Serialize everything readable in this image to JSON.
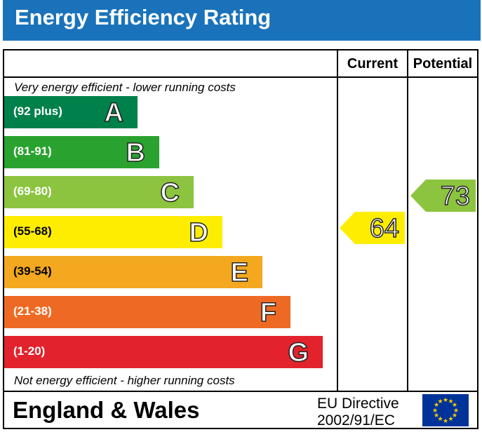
{
  "title": "Energy Efficiency Rating",
  "columns": {
    "current": "Current",
    "potential": "Potential"
  },
  "top_caption": "Very energy efficient - lower running costs",
  "bottom_caption": "Not energy efficient - higher running costs",
  "bands": [
    {
      "range": "(92 plus)",
      "letter": "A",
      "color": "#00804a"
    },
    {
      "range": "(81-91)",
      "letter": "B",
      "color": "#2aa22f"
    },
    {
      "range": "(69-80)",
      "letter": "C",
      "color": "#8cc43f"
    },
    {
      "range": "(55-68)",
      "letter": "D",
      "color": "#ffed00"
    },
    {
      "range": "(39-54)",
      "letter": "E",
      "color": "#f4a81f"
    },
    {
      "range": "(21-38)",
      "letter": "F",
      "color": "#ee6a24"
    },
    {
      "range": "(1-20)",
      "letter": "G",
      "color": "#e2222c"
    }
  ],
  "current": {
    "value": "64",
    "band": "D",
    "color": "#ffed00"
  },
  "potential": {
    "value": "73",
    "band": "C",
    "color": "#8cc43f"
  },
  "footer": {
    "region": "England & Wales",
    "directive_line1": "EU Directive",
    "directive_line2": "2002/91/EC",
    "flag_icon": "eu-flag-icon"
  }
}
